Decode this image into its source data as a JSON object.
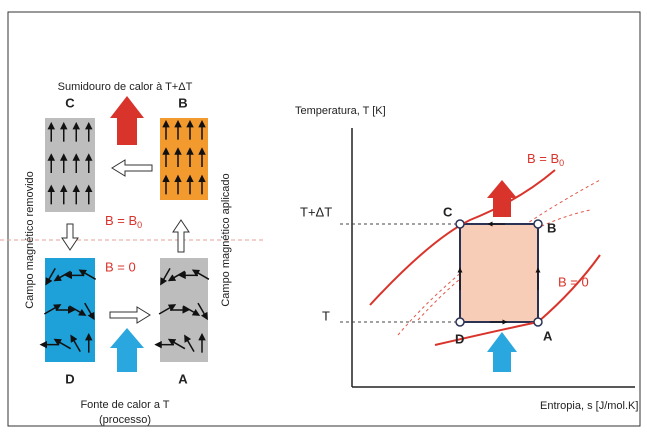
{
  "left": {
    "sink_label": "Sumidouro de calor à T+ΔT",
    "corner_c": "C",
    "corner_b": "B",
    "corner_d": "D",
    "corner_a": "A",
    "removed_label": "Campo magnético removido",
    "applied_label": "Campo magnético aplicado",
    "field_on": {
      "main": "B = B",
      "sub": "0"
    },
    "field_off": "B = 0",
    "source_label": "Fonte de calor a T",
    "source_note": "(processo)"
  },
  "right": {
    "y_axis_label": "Temperatura, T [K]",
    "x_axis_label": "Entropia, s [J/mol.K]",
    "t_high": "T+ΔT",
    "t_low": "T",
    "corner_c": "C",
    "corner_b": "B",
    "corner_d": "D",
    "corner_a": "A",
    "field_on": {
      "main": "B = B",
      "sub": "0"
    },
    "field_off": "B = 0"
  }
}
